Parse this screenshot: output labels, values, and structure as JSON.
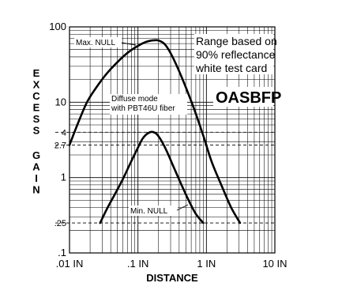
{
  "chart_data": {
    "type": "line",
    "xlabel": "DISTANCE",
    "ylabel": "EXCESS GAIN",
    "xscale": "log",
    "yscale": "log",
    "xlim": [
      0.01,
      10
    ],
    "ylim": [
      0.1,
      100
    ],
    "grid": true,
    "x_ticks": [
      {
        "value": 0.01,
        "label": ".01 IN"
      },
      {
        "value": 0.1,
        "label": ".1 IN"
      },
      {
        "value": 1,
        "label": "1 IN"
      },
      {
        "value": 10,
        "label": "10 IN"
      }
    ],
    "y_ticks": [
      {
        "value": 0.1,
        "label": ".1"
      },
      {
        "value": 0.25,
        "label": ".25"
      },
      {
        "value": 1,
        "label": "1"
      },
      {
        "value": 2.7,
        "label": "2.7"
      },
      {
        "value": 4,
        "label": "4"
      },
      {
        "value": 10,
        "label": "10"
      },
      {
        "value": 100,
        "label": "100"
      }
    ],
    "reference_lines": [
      {
        "y": 4,
        "style": "dashed"
      },
      {
        "y": 2.7,
        "style": "dashed"
      },
      {
        "y": 0.25,
        "style": "dashed"
      }
    ],
    "series": [
      {
        "id": "max-null",
        "x": [
          0.01,
          0.013,
          0.018,
          0.025,
          0.035,
          0.05,
          0.07,
          0.1,
          0.13,
          0.16,
          0.2,
          0.25,
          0.32,
          0.45,
          0.65,
          0.9,
          1.2,
          1.7,
          2.3,
          3.1
        ],
        "y": [
          2.7,
          5,
          10,
          16,
          24,
          34,
          45,
          56,
          63,
          66,
          66,
          58,
          40,
          20,
          8.5,
          3.6,
          1.6,
          0.75,
          0.4,
          0.25
        ]
      },
      {
        "id": "min-null",
        "x": [
          0.028,
          0.035,
          0.045,
          0.06,
          0.08,
          0.1,
          0.12,
          0.15,
          0.18,
          0.21,
          0.26,
          0.33,
          0.42,
          0.55,
          0.7,
          0.9
        ],
        "y": [
          0.25,
          0.38,
          0.58,
          0.95,
          1.65,
          2.5,
          3.4,
          4.0,
          3.9,
          3.3,
          2.3,
          1.4,
          0.85,
          0.5,
          0.33,
          0.25
        ]
      }
    ],
    "annotations": [
      {
        "id": "max-null-label",
        "text": "Max. NULL"
      },
      {
        "id": "min-null-label",
        "text": "Min. NULL"
      },
      {
        "id": "diffuse-line1",
        "text": "Diffuse mode"
      },
      {
        "id": "diffuse-line2",
        "text": "with PBT46U fiber"
      },
      {
        "id": "range-line1",
        "text": "Range based on"
      },
      {
        "id": "range-line2",
        "text": "90% reflectance"
      },
      {
        "id": "range-line3",
        "text": "white test card"
      },
      {
        "id": "model",
        "text": "OASBFP"
      }
    ]
  }
}
